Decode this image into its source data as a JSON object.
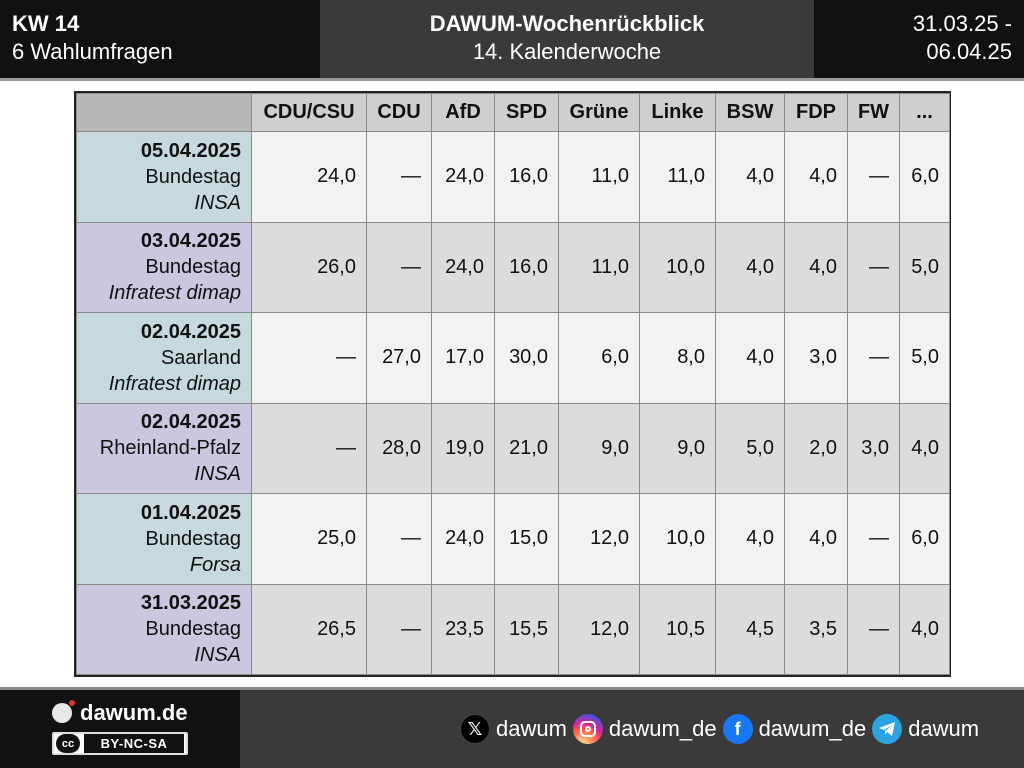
{
  "header": {
    "left_title": "KW 14",
    "left_sub": "6 Wahlumfragen",
    "center_title": "DAWUM-Wochenrückblick",
    "center_sub": "14. Kalenderwoche",
    "right_line1": "31.03.25 -",
    "right_line2": "06.04.25"
  },
  "table": {
    "columns": [
      "CDU/CSU",
      "CDU",
      "AfD",
      "SPD",
      "Grüne",
      "Linke",
      "BSW",
      "FDP",
      "FW",
      "..."
    ],
    "rows": [
      {
        "date": "05.04.2025",
        "area": "Bundestag",
        "institute": "INSA",
        "values": [
          "24,0",
          "—",
          "24,0",
          "16,0",
          "11,0",
          "11,0",
          "4,0",
          "4,0",
          "—",
          "6,0"
        ]
      },
      {
        "date": "03.04.2025",
        "area": "Bundestag",
        "institute": "Infratest dimap",
        "values": [
          "26,0",
          "—",
          "24,0",
          "16,0",
          "11,0",
          "10,0",
          "4,0",
          "4,0",
          "—",
          "5,0"
        ]
      },
      {
        "date": "02.04.2025",
        "area": "Saarland",
        "institute": "Infratest dimap",
        "values": [
          "—",
          "27,0",
          "17,0",
          "30,0",
          "6,0",
          "8,0",
          "4,0",
          "3,0",
          "—",
          "5,0"
        ]
      },
      {
        "date": "02.04.2025",
        "area": "Rheinland-Pfalz",
        "institute": "INSA",
        "values": [
          "—",
          "28,0",
          "19,0",
          "21,0",
          "9,0",
          "9,0",
          "5,0",
          "2,0",
          "3,0",
          "4,0"
        ]
      },
      {
        "date": "01.04.2025",
        "area": "Bundestag",
        "institute": "Forsa",
        "values": [
          "25,0",
          "—",
          "24,0",
          "15,0",
          "12,0",
          "10,0",
          "4,0",
          "4,0",
          "—",
          "6,0"
        ]
      },
      {
        "date": "31.03.2025",
        "area": "Bundestag",
        "institute": "INSA",
        "values": [
          "26,5",
          "—",
          "23,5",
          "15,5",
          "12,0",
          "10,5",
          "4,5",
          "3,5",
          "—",
          "4,0"
        ]
      }
    ]
  },
  "footer": {
    "brand": "dawum.de",
    "license_logo": "cc",
    "license": "BY-NC-SA",
    "socials": [
      {
        "icon": "x-icon",
        "label": "dawum"
      },
      {
        "icon": "instagram-icon",
        "label": "dawum_de"
      },
      {
        "icon": "facebook-icon",
        "label": "dawum_de"
      },
      {
        "icon": "telegram-icon",
        "label": "dawum"
      }
    ]
  },
  "colors": {
    "row_head_odd": "#c8d9dd",
    "row_head_even": "#c9c8de",
    "cell_odd": "#f2f2f2",
    "cell_even": "#dcdcdc"
  }
}
